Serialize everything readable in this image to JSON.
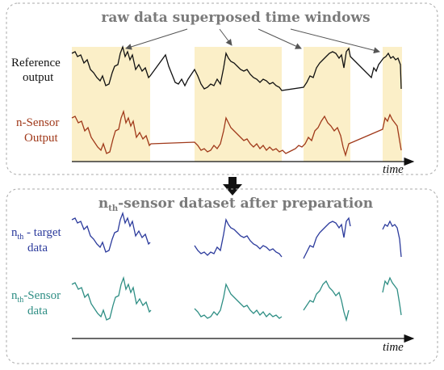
{
  "top_panel": {
    "title": "raw data superposed time windows",
    "reference_label_line1": "Reference",
    "reference_label_line2": "output",
    "sensor_label_line1": "n-Sensor",
    "sensor_label_line2": "Output",
    "axis_label": "time"
  },
  "bottom_panel": {
    "title_prefix": "n",
    "title_subscript": "th",
    "title_suffix": "-sensor dataset after preparation",
    "target_label_prefix": "n",
    "target_label_subscript": "th",
    "target_label_suffix": " - target",
    "target_label_line2": "data",
    "sensor_label_prefix": "n",
    "sensor_label_subscript": "th",
    "sensor_label_suffix": "-Sensor",
    "sensor_label_line2": "data",
    "axis_label": "time"
  },
  "colors": {
    "window_fill": "#fbefc8",
    "reference_line": "#111111",
    "sensor_line": "#a0391a",
    "target_line": "#2b3a9c",
    "nth_sensor_line": "#2e8e84",
    "panel_border": "#aaaaaa",
    "arrow": "#111111"
  },
  "icons": {
    "flow_arrow": "down-arrow-icon"
  }
}
